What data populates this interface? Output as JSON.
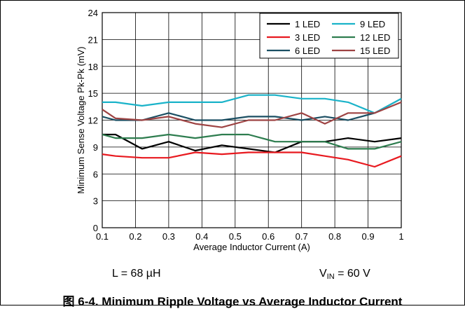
{
  "chart_data": {
    "type": "line",
    "xlabel": "Average Inductor Current (A)",
    "ylabel": "Minimum Sense Voltage Pk-Pk (mV)",
    "xlim": [
      0.1,
      1
    ],
    "ylim": [
      0,
      24
    ],
    "xticks": [
      "0.1",
      "0.2",
      "0.3",
      "0.4",
      "0.5",
      "0.6",
      "0.7",
      "0.8",
      "0.9",
      "1"
    ],
    "yticks": [
      "0",
      "3",
      "6",
      "9",
      "12",
      "15",
      "18",
      "21",
      "24"
    ],
    "grid": true,
    "legend_position": "top-right",
    "series": [
      {
        "name": "1 LED",
        "color": "#000000",
        "x": [
          0.1,
          0.14,
          0.22,
          0.3,
          0.38,
          0.46,
          0.54,
          0.62,
          0.7,
          0.77,
          0.84,
          0.92,
          1.0
        ],
        "y": [
          10.4,
          10.4,
          8.8,
          9.6,
          8.6,
          9.2,
          8.8,
          8.4,
          9.6,
          9.6,
          10.0,
          9.6,
          10.0
        ]
      },
      {
        "name": "3 LED",
        "color": "#e8191f",
        "x": [
          0.1,
          0.14,
          0.22,
          0.3,
          0.38,
          0.46,
          0.54,
          0.62,
          0.7,
          0.77,
          0.84,
          0.92,
          1.0
        ],
        "y": [
          8.2,
          8.0,
          7.8,
          7.8,
          8.4,
          8.2,
          8.4,
          8.4,
          8.4,
          8.0,
          7.6,
          6.8,
          8.0
        ]
      },
      {
        "name": "6 LED",
        "color": "#1b4f63",
        "x": [
          0.1,
          0.14,
          0.22,
          0.3,
          0.38,
          0.46,
          0.54,
          0.62,
          0.7,
          0.77,
          0.84,
          0.92,
          1.0
        ],
        "y": [
          12.4,
          12.0,
          12.0,
          12.8,
          12.0,
          12.0,
          12.4,
          12.4,
          12.0,
          12.4,
          12.0,
          12.8,
          14.4
        ]
      },
      {
        "name": "9 LED",
        "color": "#1ab3c9",
        "x": [
          0.1,
          0.14,
          0.22,
          0.3,
          0.38,
          0.46,
          0.54,
          0.62,
          0.7,
          0.77,
          0.84,
          0.92,
          1.0
        ],
        "y": [
          14.0,
          14.0,
          13.6,
          14.0,
          14.0,
          14.0,
          14.8,
          14.8,
          14.4,
          14.4,
          14.0,
          12.8,
          14.4
        ]
      },
      {
        "name": "12 LED",
        "color": "#2e7d4f",
        "x": [
          0.1,
          0.14,
          0.22,
          0.3,
          0.38,
          0.46,
          0.54,
          0.62,
          0.7,
          0.77,
          0.84,
          0.92,
          1.0
        ],
        "y": [
          10.4,
          10.0,
          10.0,
          10.4,
          10.0,
          10.4,
          10.4,
          9.6,
          9.6,
          9.6,
          8.8,
          8.8,
          9.6
        ]
      },
      {
        "name": "15 LED",
        "color": "#9e4343",
        "x": [
          0.1,
          0.14,
          0.22,
          0.3,
          0.38,
          0.46,
          0.54,
          0.62,
          0.7,
          0.77,
          0.84,
          0.92,
          1.0
        ],
        "y": [
          13.2,
          12.2,
          12.0,
          12.4,
          11.6,
          11.2,
          12.0,
          12.0,
          12.8,
          11.6,
          12.8,
          12.8,
          14.0
        ]
      }
    ]
  },
  "notes": {
    "inductance": "L = 68 µH",
    "vin_prefix": "V",
    "vin_sub": "IN",
    "vin_suffix": " = 60 V"
  },
  "caption": "图 6-4. Minimum Ripple Voltage vs Average Inductor Current"
}
